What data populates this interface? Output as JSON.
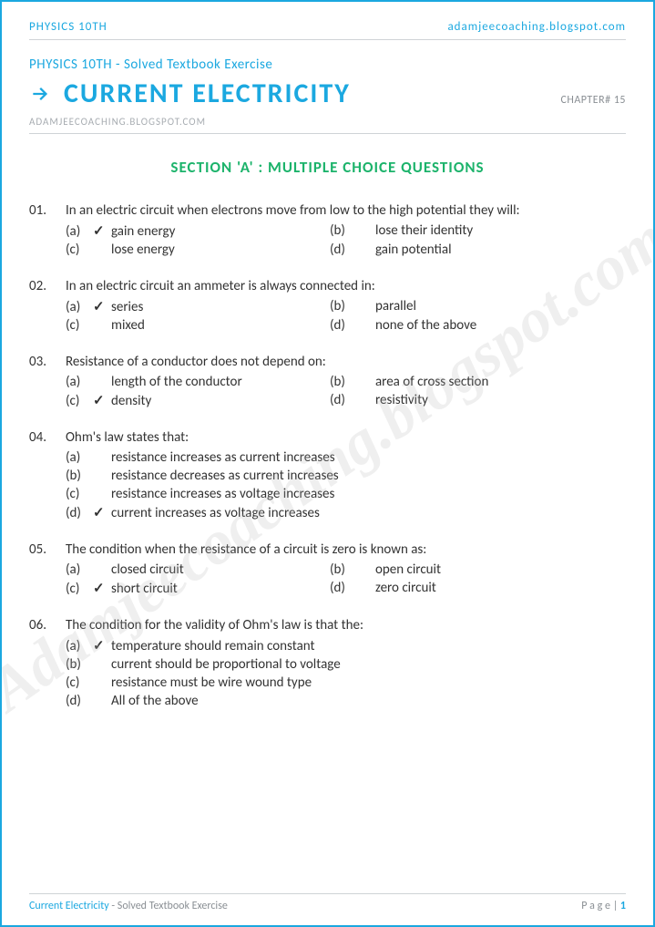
{
  "header": {
    "subject": "PHYSICS 10TH",
    "site": "adamjeecoaching.blogspot.com",
    "subtitle": "PHYSICS 10TH - Solved Textbook Exercise",
    "title": "CURRENT ELECTRICITY",
    "chapter": "CHAPTER# 15",
    "subsite": "ADAMJEECOACHING.BLOGSPOT.COM"
  },
  "section": {
    "title": "SECTION 'A' : MULTIPLE CHOICE QUESTIONS"
  },
  "watermark": "Adamjeecoaching.blogspot.com",
  "questions": [
    {
      "num": "01.",
      "text": "In an electric circuit when electrons move from low to the high potential they will:",
      "layout": "two-col",
      "options": [
        {
          "letter": "(a)",
          "text": "gain energy",
          "correct": true
        },
        {
          "letter": "(b)",
          "text": "lose their identity",
          "correct": false
        },
        {
          "letter": "(c)",
          "text": "lose energy",
          "correct": false
        },
        {
          "letter": "(d)",
          "text": "gain potential",
          "correct": false
        }
      ]
    },
    {
      "num": "02.",
      "text": "In an electric circuit an ammeter is always connected in:",
      "layout": "two-col",
      "options": [
        {
          "letter": "(a)",
          "text": "series",
          "correct": true
        },
        {
          "letter": "(b)",
          "text": "parallel",
          "correct": false
        },
        {
          "letter": "(c)",
          "text": "mixed",
          "correct": false
        },
        {
          "letter": "(d)",
          "text": "none of the above",
          "correct": false
        }
      ]
    },
    {
      "num": "03.",
      "text": "Resistance of a conductor does not depend on:",
      "layout": "two-col",
      "options": [
        {
          "letter": "(a)",
          "text": "length of the conductor",
          "correct": false
        },
        {
          "letter": "(b)",
          "text": "area of cross section",
          "correct": false
        },
        {
          "letter": "(c)",
          "text": "density",
          "correct": true
        },
        {
          "letter": "(d)",
          "text": "resistivity",
          "correct": false
        }
      ]
    },
    {
      "num": "04.",
      "text": "Ohm's law states that:",
      "layout": "one-col",
      "options": [
        {
          "letter": "(a)",
          "text": "resistance increases as current increases",
          "correct": false
        },
        {
          "letter": "(b)",
          "text": "resistance decreases as current increases",
          "correct": false
        },
        {
          "letter": "(c)",
          "text": "resistance increases as voltage increases",
          "correct": false
        },
        {
          "letter": "(d)",
          "text": "current increases as voltage increases",
          "correct": true
        }
      ]
    },
    {
      "num": "05.",
      "text": "The condition when the resistance of a circuit is zero is known as:",
      "layout": "two-col",
      "options": [
        {
          "letter": "(a)",
          "text": "closed circuit",
          "correct": false
        },
        {
          "letter": "(b)",
          "text": "open circuit",
          "correct": false
        },
        {
          "letter": "(c)",
          "text": "short circuit",
          "correct": true
        },
        {
          "letter": "(d)",
          "text": "zero circuit",
          "correct": false
        }
      ]
    },
    {
      "num": "06.",
      "text": "The condition for the validity of Ohm's law is that the:",
      "layout": "one-col",
      "options": [
        {
          "letter": "(a)",
          "text": "temperature should remain constant",
          "correct": true
        },
        {
          "letter": "(b)",
          "text": "current should be proportional to voltage",
          "correct": false
        },
        {
          "letter": "(c)",
          "text": "resistance must be wire wound type",
          "correct": false
        },
        {
          "letter": "(d)",
          "text": "All of the above",
          "correct": false
        }
      ]
    }
  ],
  "footer": {
    "topic": "Current Electricity",
    "desc": " - Solved Textbook Exercise",
    "page_label": "P a g e  | ",
    "page_num": "1"
  }
}
